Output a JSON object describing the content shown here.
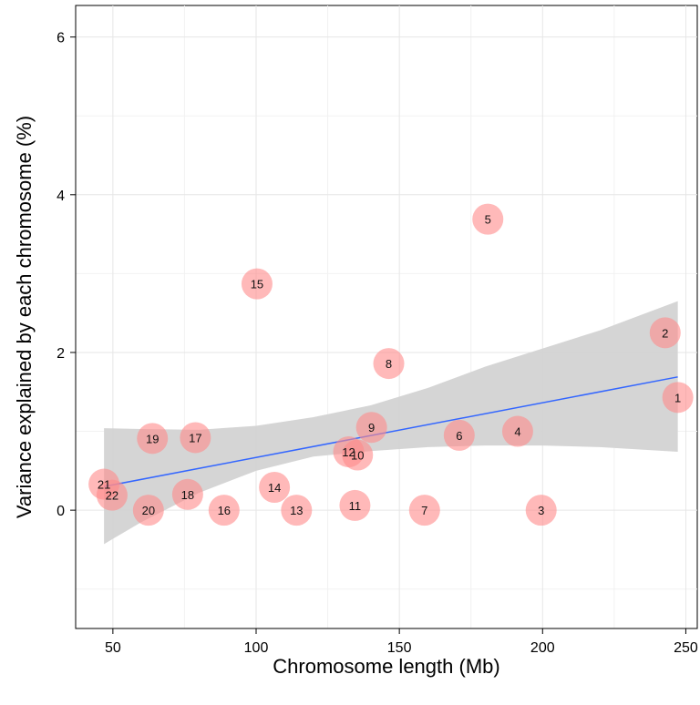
{
  "chart_data": {
    "type": "scatter",
    "title": "",
    "xlabel": "Chromosome length (Mb)",
    "ylabel": "Variance explained by each chromosome (%)",
    "xlim": [
      37,
      254
    ],
    "ylim": [
      -1.5,
      6.4
    ],
    "xticks": [
      50,
      100,
      150,
      200,
      250
    ],
    "yticks": [
      0,
      2,
      4,
      6
    ],
    "grid": true,
    "legend": "none",
    "point_color": "#ff8a8a",
    "points": [
      {
        "label": "1",
        "x": 247.2,
        "y": 1.43
      },
      {
        "label": "2",
        "x": 242.8,
        "y": 2.25
      },
      {
        "label": "3",
        "x": 199.5,
        "y": 0.0
      },
      {
        "label": "4",
        "x": 191.3,
        "y": 1.0
      },
      {
        "label": "5",
        "x": 180.9,
        "y": 3.69
      },
      {
        "label": "6",
        "x": 170.9,
        "y": 0.95
      },
      {
        "label": "7",
        "x": 158.8,
        "y": 0.0
      },
      {
        "label": "8",
        "x": 146.3,
        "y": 1.86
      },
      {
        "label": "9",
        "x": 140.3,
        "y": 1.05
      },
      {
        "label": "10",
        "x": 135.4,
        "y": 0.7
      },
      {
        "label": "11",
        "x": 134.5,
        "y": 0.06
      },
      {
        "label": "12",
        "x": 132.3,
        "y": 0.74
      },
      {
        "label": "13",
        "x": 114.1,
        "y": 0.0
      },
      {
        "label": "14",
        "x": 106.4,
        "y": 0.29
      },
      {
        "label": "15",
        "x": 100.3,
        "y": 2.87
      },
      {
        "label": "16",
        "x": 88.8,
        "y": 0.0
      },
      {
        "label": "17",
        "x": 78.8,
        "y": 0.92
      },
      {
        "label": "18",
        "x": 76.1,
        "y": 0.2
      },
      {
        "label": "19",
        "x": 63.8,
        "y": 0.91
      },
      {
        "label": "20",
        "x": 62.4,
        "y": 0.0
      },
      {
        "label": "21",
        "x": 46.9,
        "y": 0.33
      },
      {
        "label": "22",
        "x": 49.7,
        "y": 0.19
      }
    ],
    "regression": {
      "color": "#3366ff",
      "x": [
        46.9,
        247.2
      ],
      "y": [
        0.3,
        1.69
      ],
      "ci_color": "#d3d3d3",
      "ci_x": [
        46.9,
        60,
        80,
        100,
        120,
        140,
        160,
        180,
        200,
        220,
        247.2
      ],
      "ci_lower": [
        -0.43,
        -0.15,
        0.22,
        0.5,
        0.68,
        0.75,
        0.8,
        0.82,
        0.82,
        0.8,
        0.74
      ],
      "ci_upper": [
        1.04,
        1.03,
        1.02,
        1.07,
        1.18,
        1.33,
        1.55,
        1.82,
        2.05,
        2.28,
        2.65
      ]
    }
  }
}
